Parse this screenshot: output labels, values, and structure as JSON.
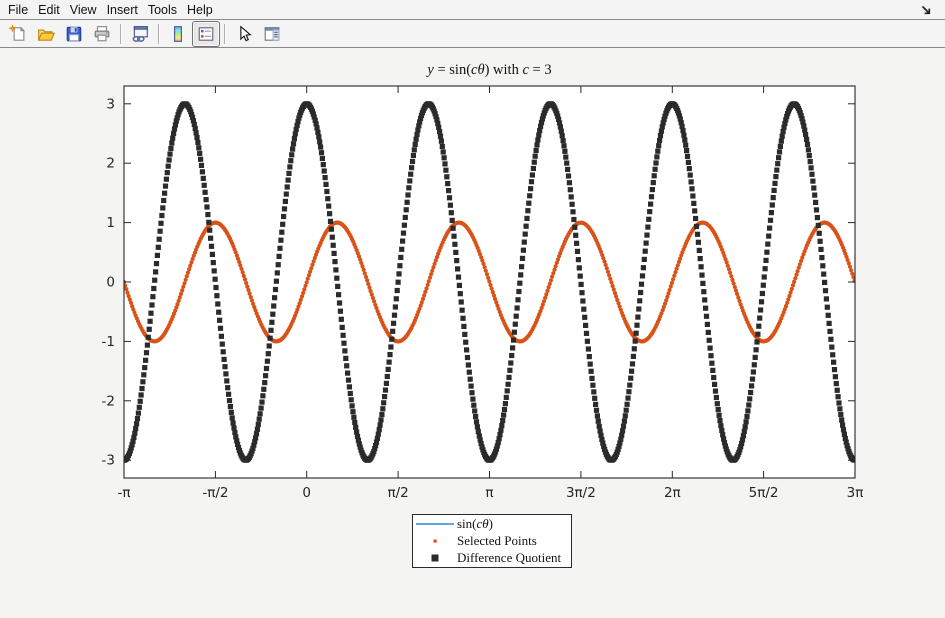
{
  "window": {
    "dock_icon": "dock-figure-arrow"
  },
  "menubar": {
    "items": [
      "File",
      "Edit",
      "View",
      "Insert",
      "Tools",
      "Help"
    ]
  },
  "toolbar": {
    "groups": [
      [
        "new-figure",
        "open-file",
        "save-figure",
        "print-figure"
      ],
      [
        "link-plot"
      ],
      [
        "insert-colorbar",
        "insert-legend"
      ],
      [
        "edit-plot",
        "show-plot-tools"
      ]
    ],
    "pressed": "insert-legend"
  },
  "chart_data": {
    "type": "line",
    "title": "y = sin(cθ) with c = 3",
    "title_segments": [
      {
        "t": "y",
        "i": true
      },
      {
        "t": " = sin(",
        "i": false
      },
      {
        "t": "cθ",
        "i": true
      },
      {
        "t": ") with ",
        "i": false
      },
      {
        "t": "c",
        "i": true
      },
      {
        "t": " = 3",
        "i": false
      }
    ],
    "xlabel": "",
    "ylabel": "",
    "grid": false,
    "xlim": [
      -3.14159265,
      9.42477796
    ],
    "ylim": [
      -3.3,
      3.3
    ],
    "xticks": {
      "values": [
        -3.14159265,
        -1.57079633,
        0,
        1.57079633,
        3.14159265,
        4.71238898,
        6.28318531,
        7.85398163,
        9.42477796
      ],
      "labels": [
        "-π",
        "-π/2",
        "0",
        "π/2",
        "π",
        "3π/2",
        "2π",
        "5π/2",
        "3π"
      ]
    },
    "yticks": {
      "values": [
        -3,
        -2,
        -1,
        0,
        1,
        2,
        3
      ],
      "labels": [
        "-3",
        "-2",
        "-1",
        "0",
        "1",
        "2",
        "3"
      ]
    },
    "series": [
      {
        "name": "sin(cθ)",
        "fn": "sin",
        "amplitude": 1,
        "frequency": 3,
        "style": "line",
        "color": "#0072BD",
        "line_width": 1.2,
        "sample_step": 0.02
      },
      {
        "name": "Selected Points",
        "fn": "sin",
        "amplitude": 1,
        "frequency": 3,
        "style": "dots",
        "color": "#D95319",
        "marker_size": 4.2,
        "sample_step": 0.02
      },
      {
        "name": "Difference Quotient",
        "fn": "cos",
        "amplitude": 3,
        "frequency": 3,
        "style": "squares",
        "color": "#2B2B2B",
        "marker_size": 5.2,
        "sample_step": 0.0155
      }
    ],
    "legend": {
      "position": "below-axes-center",
      "entries": [
        {
          "marker": "line",
          "color": "#0072BD",
          "label": "sin(cθ)",
          "label_segments": [
            {
              "t": "sin(",
              "i": false
            },
            {
              "t": "cθ",
              "i": true
            },
            {
              "t": ")",
              "i": false
            }
          ]
        },
        {
          "marker": "dot",
          "color": "#D95319",
          "label": "Selected Points",
          "label_segments": [
            {
              "t": "Selected Points",
              "i": false
            }
          ]
        },
        {
          "marker": "square",
          "color": "#2B2B2B",
          "label": "Difference Quotient",
          "label_segments": [
            {
              "t": "Difference Quotient",
              "i": false
            }
          ]
        }
      ]
    },
    "colors": {
      "axis": "#262626",
      "plot_background": "#ffffff"
    }
  }
}
